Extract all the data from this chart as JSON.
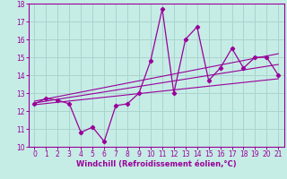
{
  "title": "",
  "xlabel": "Windchill (Refroidissement éolien,°C)",
  "xlim": [
    -0.5,
    21.5
  ],
  "ylim": [
    10,
    18
  ],
  "xticks": [
    0,
    1,
    2,
    3,
    4,
    5,
    6,
    7,
    8,
    9,
    10,
    11,
    12,
    13,
    14,
    15,
    16,
    17,
    18,
    19,
    20,
    21
  ],
  "yticks": [
    10,
    11,
    12,
    13,
    14,
    15,
    16,
    17,
    18
  ],
  "bg_color": "#c6ece6",
  "grid_color": "#aad4ce",
  "line_color": "#990099",
  "main_x": [
    0,
    1,
    2,
    3,
    4,
    5,
    6,
    7,
    8,
    9,
    10,
    11,
    12,
    13,
    14,
    15,
    16,
    17,
    18,
    19,
    20,
    21
  ],
  "main_y": [
    12.4,
    12.7,
    12.6,
    12.4,
    10.8,
    11.1,
    10.3,
    12.3,
    12.4,
    13.0,
    14.8,
    17.7,
    13.0,
    16.0,
    16.7,
    13.7,
    14.4,
    15.5,
    14.4,
    15.0,
    15.0,
    14.0
  ],
  "trend1_x": [
    0,
    21
  ],
  "trend1_y": [
    12.35,
    13.8
  ],
  "trend2_x": [
    0,
    21
  ],
  "trend2_y": [
    12.45,
    14.6
  ],
  "trend3_x": [
    0,
    21
  ],
  "trend3_y": [
    12.55,
    15.2
  ],
  "xlabel_fontsize": 6,
  "tick_fontsize": 5.5
}
